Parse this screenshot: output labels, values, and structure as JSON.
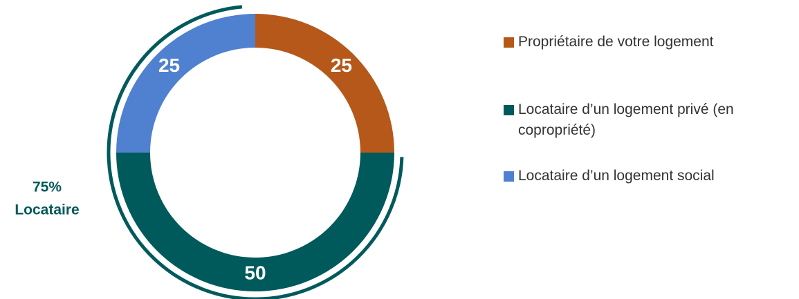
{
  "chart_data": {
    "type": "donut",
    "categories": [
      "Propriétaire de votre logement",
      "Locataire d’un logement privé (en copropriété)",
      "Locataire d’un logement social"
    ],
    "values": [
      25,
      50,
      25
    ],
    "colors": [
      "#b5581a",
      "#005a5b",
      "#4f81d0"
    ],
    "annotation": [
      "75%",
      "Locataire"
    ],
    "annotation_color": "#005a5b"
  }
}
